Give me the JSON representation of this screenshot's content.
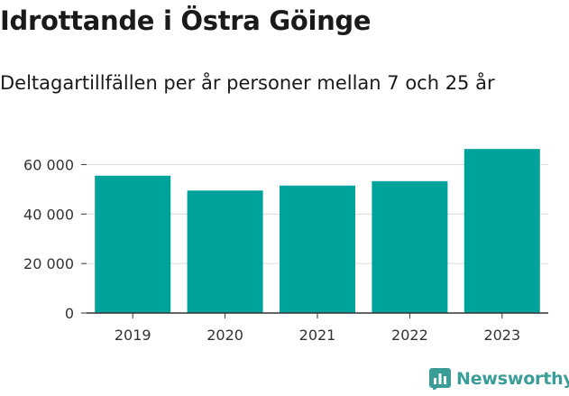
{
  "title": "Idrottande i Östra Göinge",
  "subtitle": "Deltagartillfällen per år personer mellan 7 och 25 år",
  "brand": {
    "name": "Newsworthy",
    "color": "#3a9d97",
    "icon": "bar-chart-icon"
  },
  "colors": {
    "bar": "#00a39b",
    "grid": "#d9d9d9",
    "axis": "#333333"
  },
  "chart_data": {
    "type": "bar",
    "categories": [
      "2019",
      "2020",
      "2021",
      "2022",
      "2023"
    ],
    "values": [
      55500,
      49500,
      51500,
      53300,
      66300
    ],
    "y_ticks": [
      0,
      20000,
      40000,
      60000
    ],
    "y_tick_labels": [
      "0",
      "20 000",
      "40 000",
      "60 000"
    ],
    "ylim": [
      0,
      70000
    ],
    "grid": true,
    "legend": "none",
    "xlabel": "",
    "ylabel": ""
  }
}
